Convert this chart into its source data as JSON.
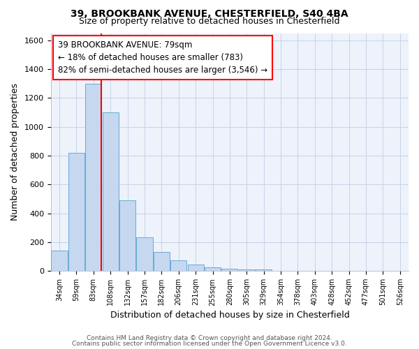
{
  "title1": "39, BROOKBANK AVENUE, CHESTERFIELD, S40 4BA",
  "title2": "Size of property relative to detached houses in Chesterfield",
  "xlabel": "Distribution of detached houses by size in Chesterfield",
  "ylabel": "Number of detached properties",
  "bin_labels": [
    "34sqm",
    "59sqm",
    "83sqm",
    "108sqm",
    "132sqm",
    "157sqm",
    "182sqm",
    "206sqm",
    "231sqm",
    "255sqm",
    "280sqm",
    "305sqm",
    "329sqm",
    "354sqm",
    "378sqm",
    "403sqm",
    "428sqm",
    "452sqm",
    "477sqm",
    "501sqm",
    "526sqm"
  ],
  "bar_values": [
    143,
    820,
    1300,
    1100,
    490,
    235,
    130,
    75,
    47,
    27,
    15,
    10,
    10,
    0,
    0,
    0,
    0,
    0,
    0,
    0,
    0
  ],
  "bar_color": "#c5d8f0",
  "bar_edge_color": "#6aaad4",
  "grid_color": "#c8d4e8",
  "background_color": "#edf2fb",
  "red_line_index": 2,
  "annotation_line1": "39 BROOKBANK AVENUE: 79sqm",
  "annotation_line2": "← 18% of detached houses are smaller (783)",
  "annotation_line3": "82% of semi-detached houses are larger (3,546) →",
  "footer1": "Contains HM Land Registry data © Crown copyright and database right 2024.",
  "footer2": "Contains public sector information licensed under the Open Government Licence v3.0.",
  "ylim": [
    0,
    1650
  ],
  "yticks": [
    0,
    200,
    400,
    600,
    800,
    1000,
    1200,
    1400,
    1600
  ]
}
